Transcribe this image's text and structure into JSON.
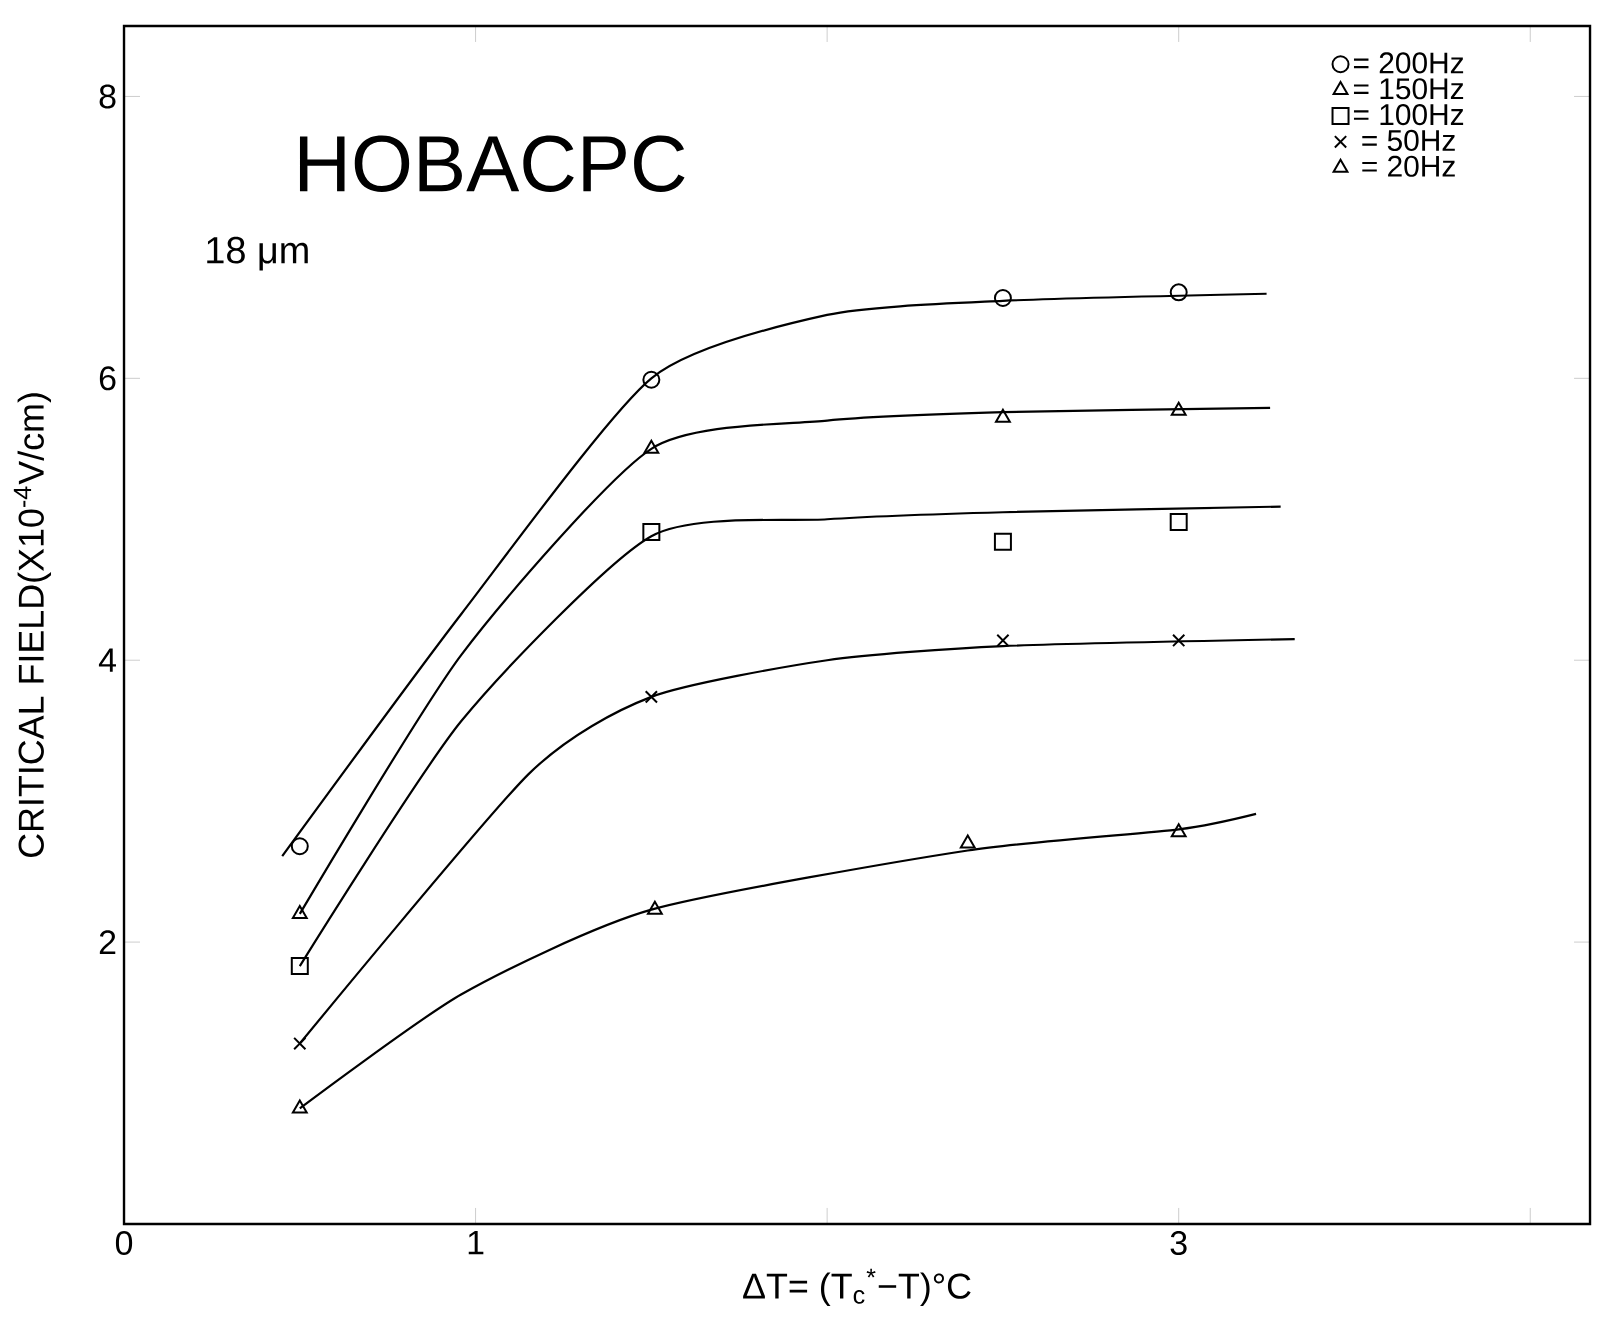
{
  "chart_data": {
    "type": "scatter",
    "title": "HOBACPC",
    "subtitle": "18 μm",
    "xlabel": "ΔT= (T$_{c}$$^{*}$−T)°C",
    "ylabel": "CRITICAL FIELD(X10$^{-4}$V/cm)",
    "xlim": [
      0,
      4.17
    ],
    "ylim": [
      0,
      8.5
    ],
    "xticks": [
      0,
      1,
      {
        "value": 2,
        "label": null
      },
      3,
      {
        "value": 4,
        "label": null
      }
    ],
    "yticks": [
      2,
      4,
      6,
      8
    ],
    "grid": false,
    "legend": "top right",
    "series": [
      {
        "name": "= 200Hz",
        "marker": "circle",
        "color": "#000000",
        "x": [
          0.5,
          1.5,
          2.5,
          3.0
        ],
        "values": [
          2.68,
          5.99,
          6.57,
          6.61
        ]
      },
      {
        "name": "= 150Hz",
        "marker": "triangle",
        "color": "#000000",
        "x": [
          0.5,
          1.5,
          2.5,
          3.0
        ],
        "values": [
          2.2,
          5.5,
          5.72,
          5.77
        ]
      },
      {
        "name": "= 100Hz",
        "marker": "square",
        "color": "#000000",
        "x": [
          0.5,
          1.5,
          2.5,
          3.0
        ],
        "values": [
          1.83,
          4.91,
          4.84,
          4.98
        ]
      },
      {
        "name": "= 50Hz",
        "marker": "cross",
        "color": "#000000",
        "x": [
          0.5,
          1.5,
          2.5,
          3.0
        ],
        "values": [
          1.28,
          3.74,
          4.14,
          4.14
        ]
      },
      {
        "name": "= 20Hz",
        "marker": "triangle",
        "color": "#000000",
        "x": [
          0.5,
          1.51,
          2.4,
          3.0
        ],
        "values": [
          0.82,
          2.23,
          2.7,
          2.78
        ]
      },
      {
        "type": "line",
        "marker": "none",
        "color": "#000000",
        "x": [
          0.45,
          0.96,
          1.5,
          2.0,
          2.5,
          3.25
        ],
        "values": [
          2.61,
          4.33,
          6.0,
          6.45,
          6.55,
          6.6
        ]
      },
      {
        "type": "line",
        "marker": "none",
        "color": "#000000",
        "x": [
          0.5,
          0.96,
          1.5,
          2.0,
          2.5,
          3.26
        ],
        "values": [
          2.2,
          4.04,
          5.5,
          5.7,
          5.76,
          5.79
        ]
      },
      {
        "type": "line",
        "marker": "none",
        "color": "#000000",
        "x": [
          0.5,
          0.96,
          1.5,
          2.0,
          2.5,
          3.29
        ],
        "values": [
          1.83,
          3.57,
          4.88,
          5.0,
          5.05,
          5.09
        ]
      },
      {
        "type": "line",
        "marker": "none",
        "color": "#000000",
        "x": [
          0.5,
          1.15,
          1.5,
          2.0,
          2.5,
          3.33
        ],
        "values": [
          1.28,
          3.19,
          3.74,
          4.0,
          4.1,
          4.15
        ]
      },
      {
        "type": "line",
        "marker": "none",
        "color": "#000000",
        "x": [
          0.5,
          0.96,
          1.5,
          2.4,
          3.0,
          3.22
        ],
        "values": [
          0.82,
          1.63,
          2.23,
          2.65,
          2.8,
          2.91
        ]
      }
    ]
  }
}
